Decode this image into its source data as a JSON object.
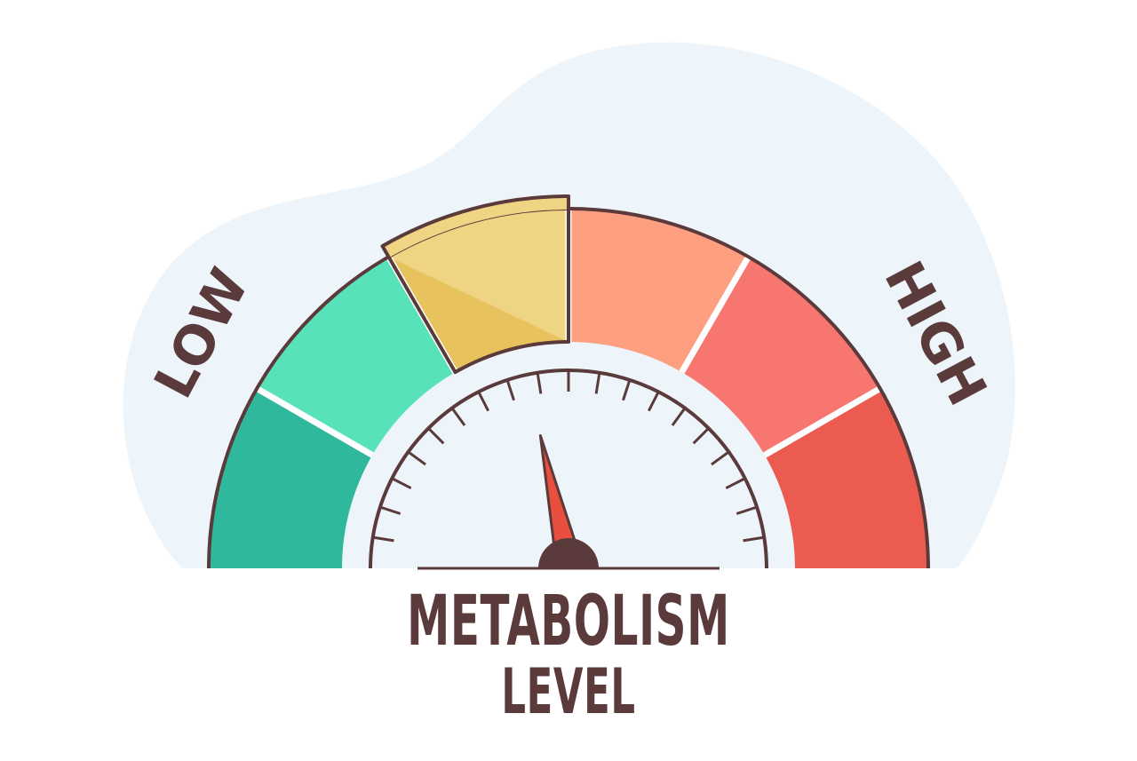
{
  "gauge": {
    "label_low": "LOW",
    "label_high": "HIGH",
    "title_line1": "METABOLISM",
    "title_line2": "LEVEL",
    "segments": [
      {
        "name": "low-1",
        "color": "#2fb89c"
      },
      {
        "name": "low-2",
        "color": "#58e2b9"
      },
      {
        "name": "medium-low",
        "color": "#efd484",
        "shade": "#e8c35d",
        "highlighted": true
      },
      {
        "name": "medium-high",
        "color": "#fd9f80"
      },
      {
        "name": "high-1",
        "color": "#f87670"
      },
      {
        "name": "high-2",
        "color": "#eb5b50"
      }
    ],
    "needle_level": 0.43,
    "tick_count": 20,
    "colors": {
      "outline": "#5a3a3a",
      "background_blob": "#edf5fa",
      "dial_face": "#edf5fa",
      "needle": "#e94f3e",
      "hub": "#5a3a3a"
    }
  }
}
